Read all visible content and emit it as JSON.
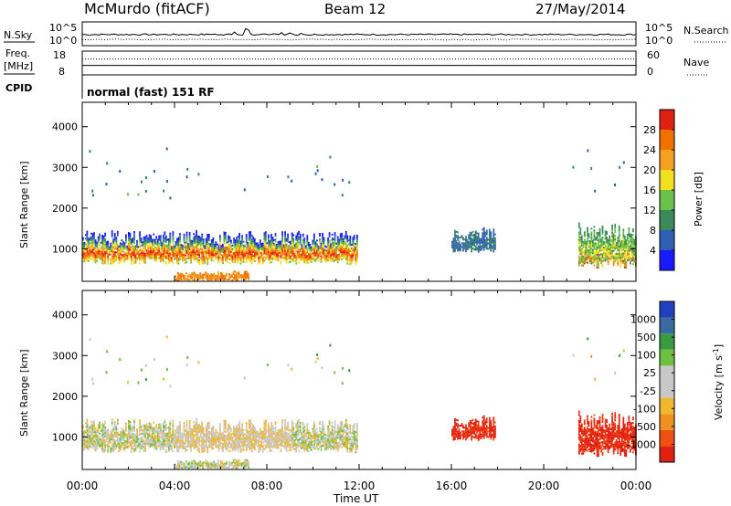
{
  "header": {
    "station": "McMurdo (fitACF)",
    "beam": "Beam 12",
    "date": "27/May/2014"
  },
  "params": {
    "nsky_label": "N.Sky",
    "nsearch_label": "N.Search",
    "freq_label_top": "Freq.",
    "freq_label_unit": "[MHz]",
    "nave_label": "Nave",
    "cpid_label": "CPID",
    "cpid_value": "normal (fast) 151 RF",
    "nsky_ticks": [
      "10^5",
      "10^0"
    ],
    "nsearch_ticks": [
      "10^5",
      "10^0"
    ],
    "freq_ticks": [
      "18",
      "8"
    ],
    "nave_ticks": [
      "60",
      "0"
    ]
  },
  "colors": {
    "power_scale": [
      "#1a1aff",
      "#2f5fb3",
      "#3a8a5a",
      "#6cc14a",
      "#f0e020",
      "#f5a020",
      "#f07000",
      "#e02010"
    ],
    "velocity_scale": [
      "#e02010",
      "#f05010",
      "#f09020",
      "#f0b830",
      "#c8c8c8",
      "#c8c8c8",
      "#70c040",
      "#3a9a40",
      "#3a6aa0",
      "#2040c0"
    ]
  },
  "chart_data": [
    {
      "type": "heatmap",
      "title": "Power",
      "ylabel": "Slant Range [km]",
      "xlabel": "",
      "x_ticks": [
        "00:00",
        "04:00",
        "08:00",
        "12:00",
        "16:00",
        "20:00",
        "00:00"
      ],
      "y_ticks": [
        "1000",
        "2000",
        "3000",
        "4000"
      ],
      "xlim": [
        0,
        24
      ],
      "ylim": [
        200,
        4600
      ],
      "colorbar_label": "Power [dB]",
      "colorbar_ticks": [
        "4",
        "8",
        "12",
        "16",
        "20",
        "24",
        "28"
      ],
      "colorbar_range": [
        0,
        32
      ]
    },
    {
      "type": "heatmap",
      "title": "Velocity",
      "ylabel": "Slant Range [km]",
      "xlabel": "Time UT",
      "x_ticks": [
        "00:00",
        "04:00",
        "08:00",
        "12:00",
        "16:00",
        "20:00",
        "00:00"
      ],
      "y_ticks": [
        "1000",
        "2000",
        "3000",
        "4000"
      ],
      "xlim": [
        0,
        24
      ],
      "ylim": [
        200,
        4600
      ],
      "colorbar_label": "Velocity [m s^-1]",
      "colorbar_ticks": [
        "-1000",
        "-500",
        "-100",
        "-25",
        "25",
        "100",
        "500",
        "1000"
      ]
    }
  ]
}
